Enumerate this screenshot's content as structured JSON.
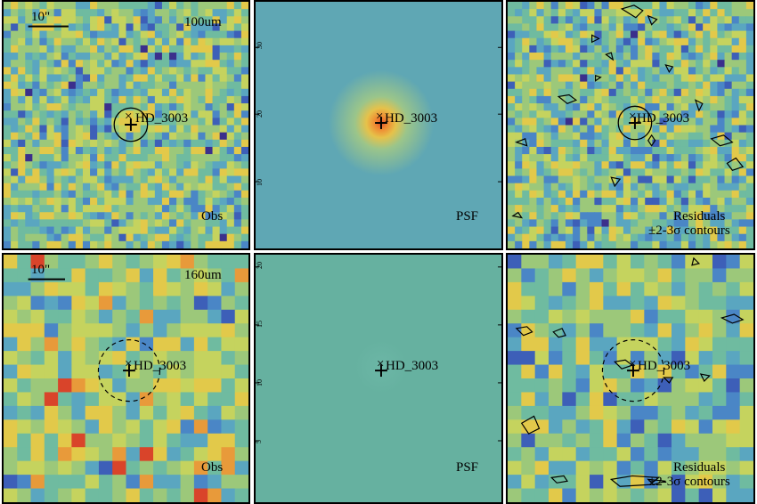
{
  "figure": {
    "rows": [
      {
        "band": "100um",
        "scale_bar": "10\"",
        "obs_label": "Obs",
        "psf_label": "PSF",
        "resid_label_1": "Residuals",
        "resid_label_2": "±2-3σ contours",
        "target": "HD_3003",
        "psf_ticks": [
          "30",
          "20",
          "10"
        ]
      },
      {
        "band": "160um",
        "scale_bar": "10\"",
        "obs_label": "Obs",
        "psf_label": "PSF",
        "resid_label_1": "Residuals",
        "resid_label_2": "±2-3σ contours",
        "target": "HD_3003",
        "psf_ticks": [
          "20",
          "15",
          "10",
          "5"
        ]
      }
    ],
    "colors": {
      "psf_bg_top": "#5fa7b4",
      "psf_bg_bottom": "#6ab5a3",
      "psf_core": "#e25c2c",
      "border": "#000000"
    }
  }
}
